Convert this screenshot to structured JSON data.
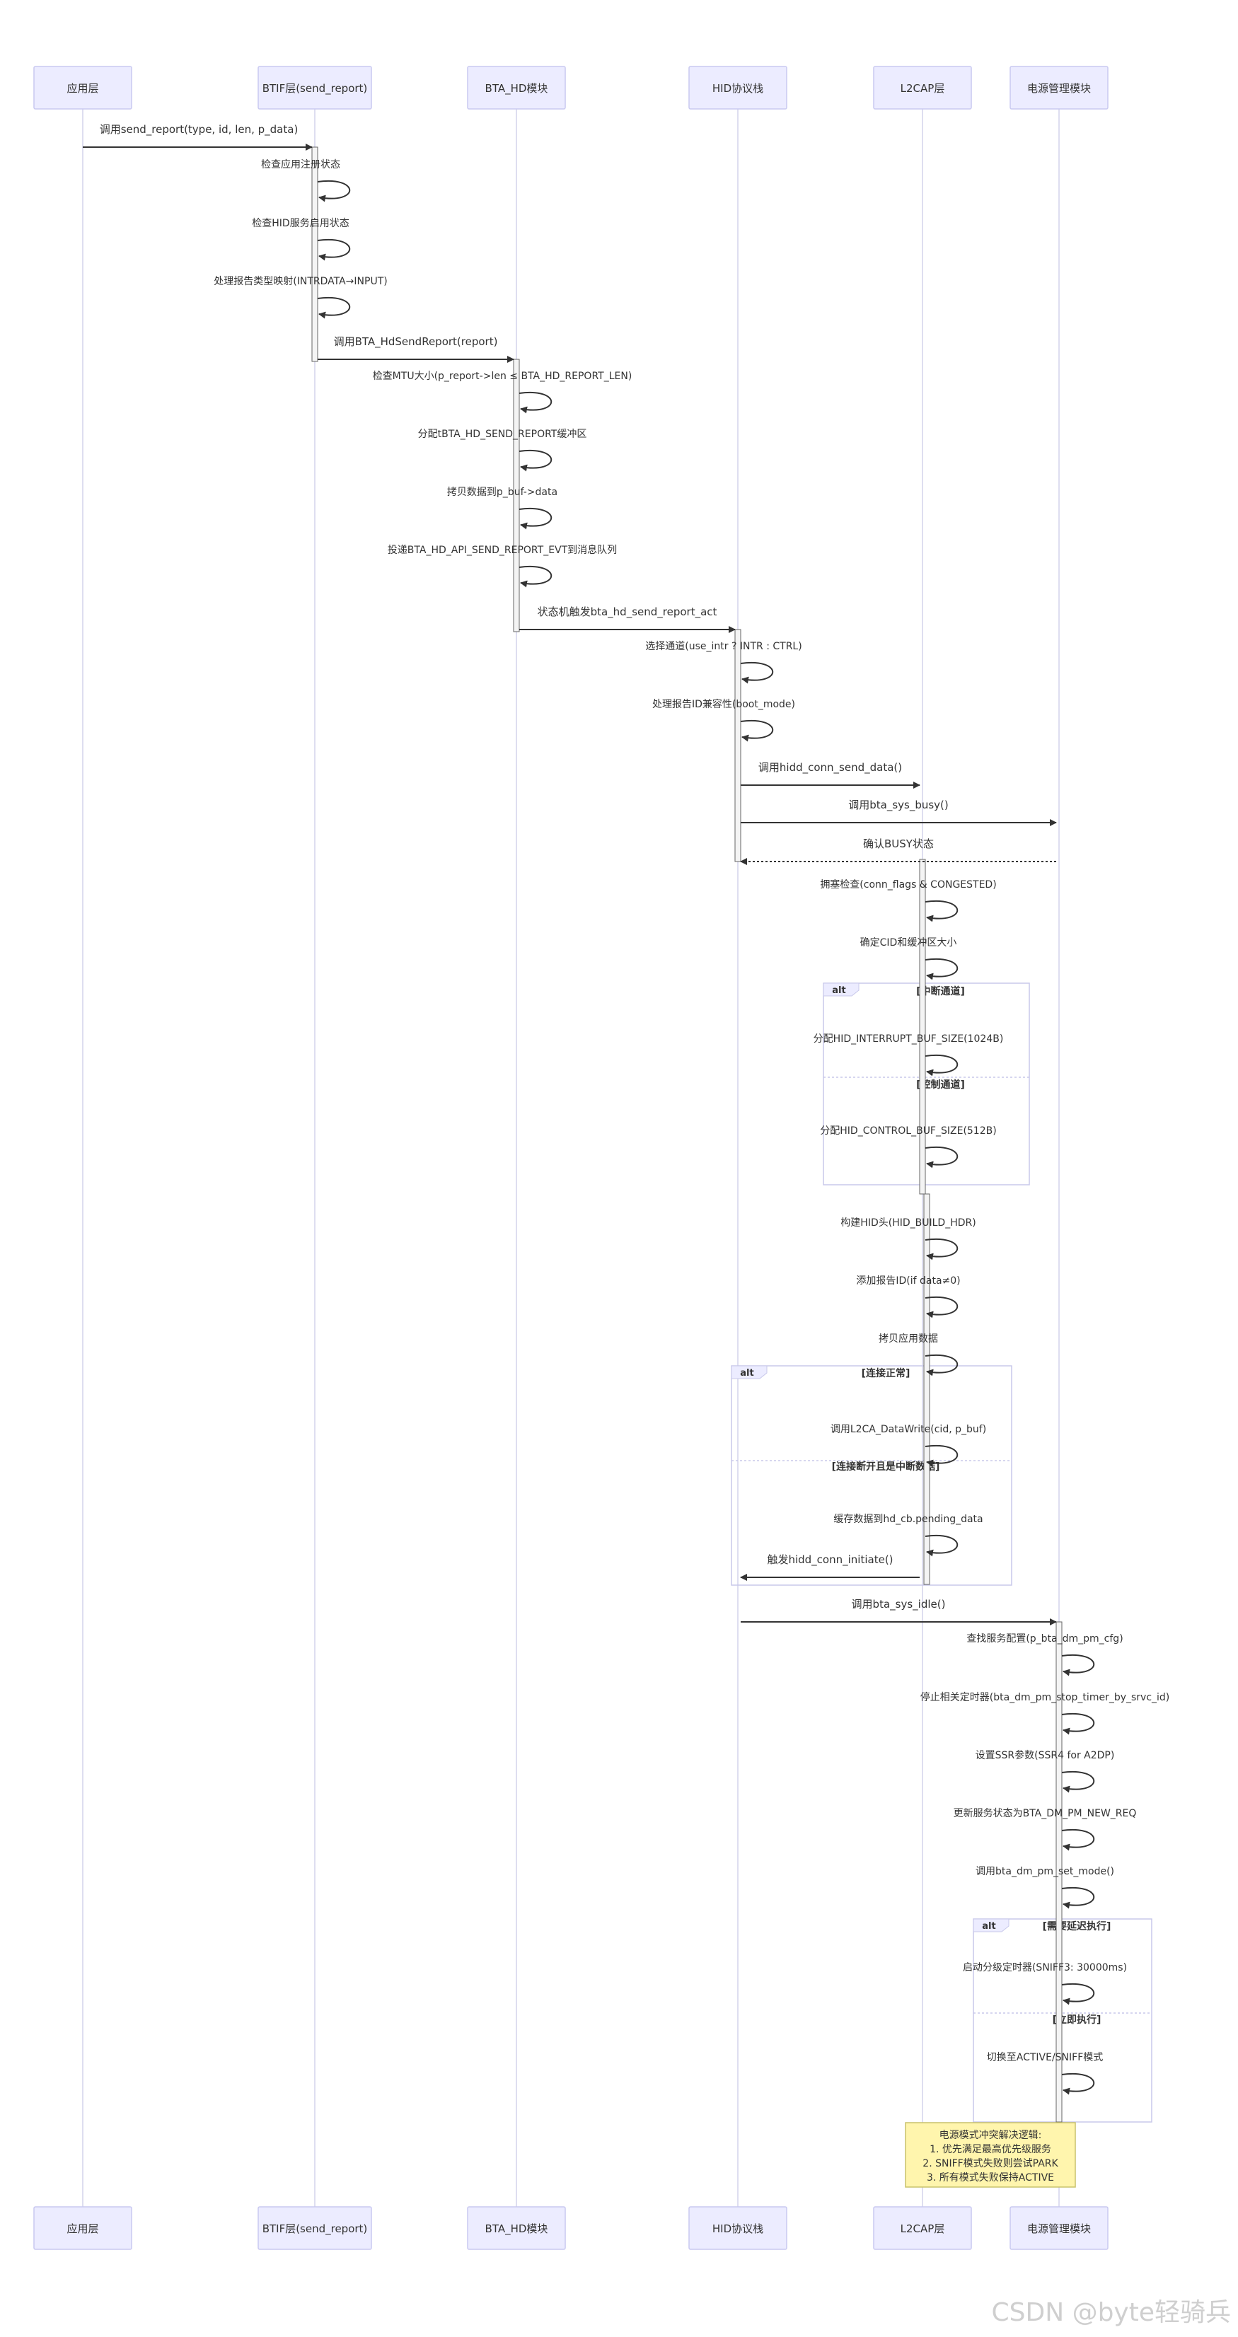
{
  "participants": [
    {
      "id": "app",
      "label": "应用层"
    },
    {
      "id": "btif",
      "label": "BTIF层(send_report)"
    },
    {
      "id": "bta",
      "label": "BTA_HD模块"
    },
    {
      "id": "hid",
      "label": "HID协议栈"
    },
    {
      "id": "l2cap",
      "label": "L2CAP层"
    },
    {
      "id": "pm",
      "label": "电源管理模块"
    }
  ],
  "messages": [
    {
      "from": "app",
      "to": "btif",
      "label": "调用send_report(type, id, len, p_data)"
    },
    {
      "from": "btif",
      "to": "btif",
      "label": "检查应用注册状态"
    },
    {
      "from": "btif",
      "to": "btif",
      "label": "检查HID服务启用状态"
    },
    {
      "from": "btif",
      "to": "btif",
      "label": "处理报告类型映射(INTRDATA→INPUT)"
    },
    {
      "from": "btif",
      "to": "bta",
      "label": "调用BTA_HdSendReport(report)"
    },
    {
      "from": "bta",
      "to": "bta",
      "label": "检查MTU大小(p_report->len ≤ BTA_HD_REPORT_LEN)"
    },
    {
      "from": "bta",
      "to": "bta",
      "label": "分配tBTA_HD_SEND_REPORT缓冲区"
    },
    {
      "from": "bta",
      "to": "bta",
      "label": "拷贝数据到p_buf->data"
    },
    {
      "from": "bta",
      "to": "bta",
      "label": "投递BTA_HD_API_SEND_REPORT_EVT到消息队列"
    },
    {
      "from": "bta",
      "to": "hid",
      "label": "状态机触发bta_hd_send_report_act"
    },
    {
      "from": "hid",
      "to": "hid",
      "label": "选择通道(use_intr ? INTR : CTRL)"
    },
    {
      "from": "hid",
      "to": "hid",
      "label": "处理报告ID兼容性(boot_mode)"
    },
    {
      "from": "hid",
      "to": "l2cap",
      "label": "调用hidd_conn_send_data()"
    },
    {
      "from": "hid",
      "to": "pm",
      "label": "调用bta_sys_busy()"
    },
    {
      "from": "pm",
      "to": "hid",
      "label": "确认BUSY状态",
      "dashed": true
    },
    {
      "from": "l2cap",
      "to": "l2cap",
      "label": "拥塞检查(conn_flags & CONGESTED)"
    },
    {
      "from": "l2cap",
      "to": "l2cap",
      "label": "确定CID和缓冲区大小"
    },
    {
      "from": "l2cap",
      "to": "l2cap",
      "label": "分配HID_INTERRUPT_BUF_SIZE(1024B)"
    },
    {
      "from": "l2cap",
      "to": "l2cap",
      "label": "分配HID_CONTROL_BUF_SIZE(512B)"
    },
    {
      "from": "l2cap",
      "to": "l2cap",
      "label": "构建HID头(HID_BUILD_HDR)"
    },
    {
      "from": "l2cap",
      "to": "l2cap",
      "label": "添加报告ID(if data≠0)"
    },
    {
      "from": "l2cap",
      "to": "l2cap",
      "label": "拷贝应用数据"
    },
    {
      "from": "l2cap",
      "to": "l2cap",
      "label": "调用L2CA_DataWrite(cid, p_buf)"
    },
    {
      "from": "l2cap",
      "to": "l2cap",
      "label": "缓存数据到hd_cb.pending_data"
    },
    {
      "from": "l2cap",
      "to": "hid",
      "label": "触发hidd_conn_initiate()"
    },
    {
      "from": "hid",
      "to": "pm",
      "label": "调用bta_sys_idle()"
    },
    {
      "from": "pm",
      "to": "pm",
      "label": "查找服务配置(p_bta_dm_pm_cfg)"
    },
    {
      "from": "pm",
      "to": "pm",
      "label": "停止相关定时器(bta_dm_pm_stop_timer_by_srvc_id)"
    },
    {
      "from": "pm",
      "to": "pm",
      "label": "设置SSR参数(SSR4 for A2DP)"
    },
    {
      "from": "pm",
      "to": "pm",
      "label": "更新服务状态为BTA_DM_PM_NEW_REQ"
    },
    {
      "from": "pm",
      "to": "pm",
      "label": "调用bta_dm_pm_set_mode()"
    },
    {
      "from": "pm",
      "to": "pm",
      "label": "启动分级定时器(SNIFF3: 30000ms)"
    },
    {
      "from": "pm",
      "to": "pm",
      "label": "切换至ACTIVE/SNIFF模式"
    }
  ],
  "alt_blocks": [
    {
      "keyword": "alt",
      "conditions": [
        "[中断通道]",
        "[控制通道]"
      ]
    },
    {
      "keyword": "alt",
      "conditions": [
        "[连接正常]",
        "[连接断开且是中断数据]"
      ]
    },
    {
      "keyword": "alt",
      "conditions": [
        "[需要延迟执行]",
        "[立即执行]"
      ]
    }
  ],
  "note": {
    "over": "pm",
    "lines": [
      "电源模式冲突解决逻辑:",
      "1. 优先满足最高优先级服务",
      "2. SNIFF模式失败则尝试PARK",
      "3. 所有模式失败保持ACTIVE"
    ]
  },
  "watermark": "CSDN @byte轻骑兵",
  "colors": {
    "participant_fill": "#ECECFF",
    "participant_stroke": "#C9C9F0",
    "lifeline": "#D4D4EC",
    "activation_fill": "#F4F4F4",
    "activation_stroke": "#666666",
    "arrow": "#333333",
    "alt_border": "#C8C8EA",
    "alt_tab": "#ECECFF",
    "note_fill": "#FFF5AD",
    "note_stroke": "#C9C26C",
    "text": "#333333"
  }
}
